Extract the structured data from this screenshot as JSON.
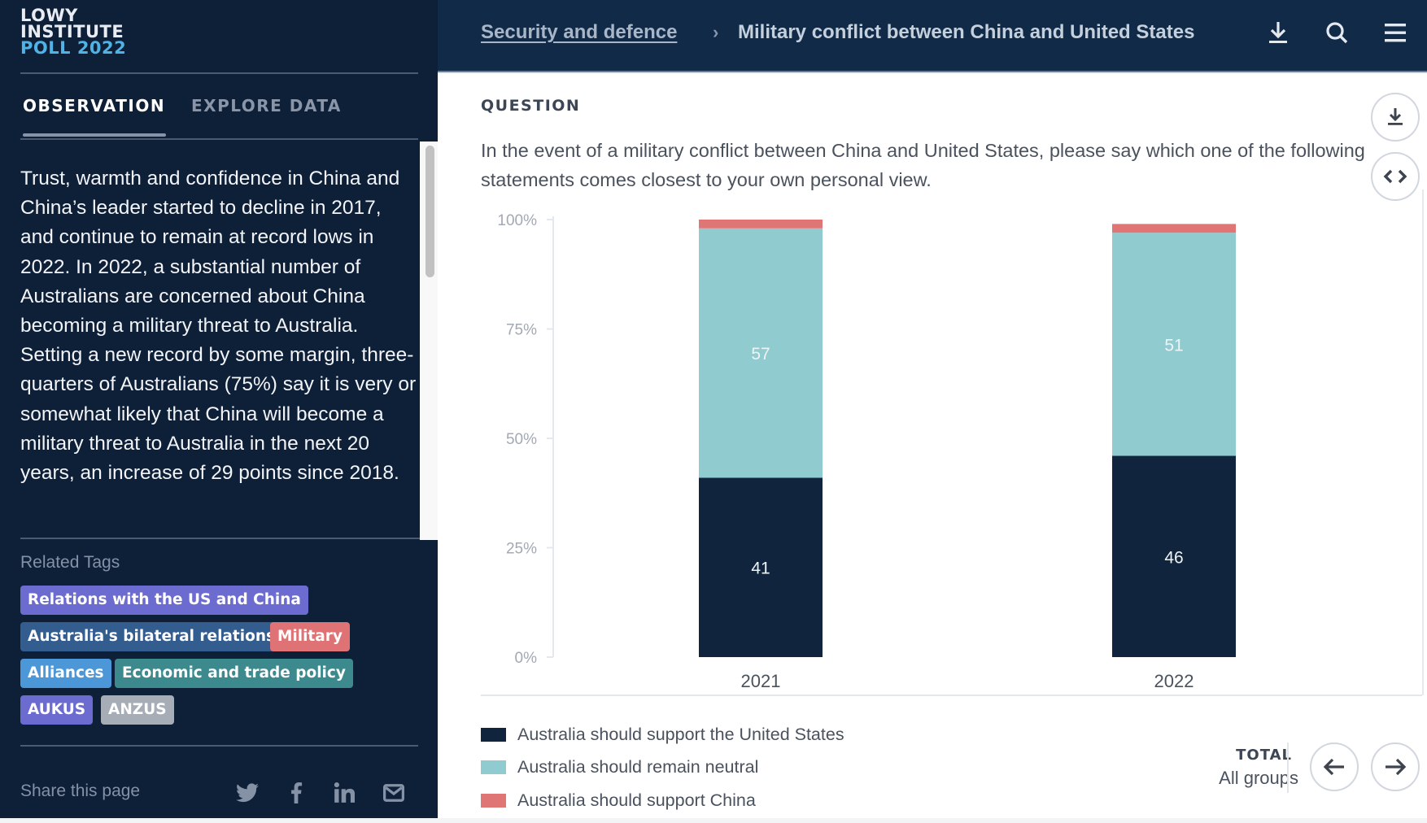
{
  "logo": {
    "line1": "LOWY",
    "line2": "INSTITUTE",
    "line3": "POLL 2022"
  },
  "sidebar": {
    "tabs": [
      {
        "label": "OBSERVATION",
        "active": true
      },
      {
        "label": "EXPLORE DATA",
        "active": false
      }
    ],
    "observation": "Trust, warmth and confidence in China and China’s leader started to decline in 2017, and continue to remain at record lows in 2022. In 2022, a substantial number of Australians are concerned about China becoming a military threat to Australia. Setting a new record by some margin, three-quarters of Australians (75%) say it is very or somewhat likely that China will become a military threat to Australia in the next 20 years, an increase of 29 points since 2018.",
    "related_tags_label": "Related Tags",
    "tags": [
      {
        "label": "Relations with the US and China",
        "color": "#6c6bd0"
      },
      {
        "label": "Australia's bilateral relations",
        "color": "#335c8f"
      },
      {
        "label": "Military",
        "color": "#df7274"
      },
      {
        "label": "Alliances",
        "color": "#4b97d8"
      },
      {
        "label": "Economic and trade policy",
        "color": "#3c8a8e"
      },
      {
        "label": "AUKUS",
        "color": "#6c6bd0"
      },
      {
        "label": "ANZUS",
        "color": "#a7adb6"
      }
    ],
    "share_label": "Share this page",
    "share_icons": [
      "twitter-icon",
      "facebook-icon",
      "linkedin-icon",
      "email-icon"
    ]
  },
  "header": {
    "breadcrumb_parent": "Security and defence",
    "breadcrumb_separator": "›",
    "breadcrumb_current": "Military conflict between China and United States",
    "icons": [
      "download-icon",
      "search-icon",
      "menu-icon"
    ]
  },
  "main": {
    "question_label": "QUESTION",
    "question_text": "In the event of a military conflict between China and United States, please say which one of the following statements comes closest to your own personal view.",
    "side_buttons": [
      "download-icon",
      "embed-code-icon"
    ],
    "total_label": "TOTAL",
    "total_group": "All groups",
    "nav": [
      "previous-arrow-icon",
      "next-arrow-icon"
    ]
  },
  "chart_data": {
    "type": "bar",
    "stacked": true,
    "title": "",
    "xlabel": "",
    "ylabel": "",
    "categories": [
      "2021",
      "2022"
    ],
    "series": [
      {
        "name": "Australia should support the United States",
        "color": "#10253d",
        "values": [
          41,
          46
        ]
      },
      {
        "name": "Australia should remain neutral",
        "color": "#90cbcf",
        "values": [
          57,
          51
        ]
      },
      {
        "name": "Australia should support China",
        "color": "#e07576",
        "values": [
          2,
          2
        ]
      }
    ],
    "show_labels_for": [
      "Australia should support the United States",
      "Australia should remain neutral"
    ],
    "ylim": [
      0,
      100
    ],
    "yticks": [
      0,
      25,
      50,
      75,
      100
    ],
    "ytick_format": "{v}%",
    "grid": false,
    "legend": "bottom-left"
  }
}
